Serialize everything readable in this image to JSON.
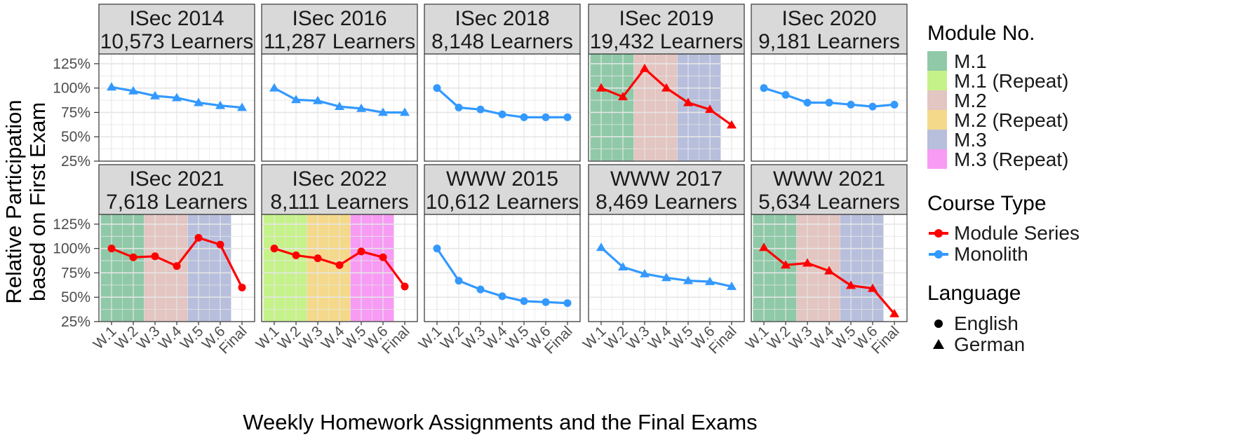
{
  "chart_data": {
    "type": "line",
    "xlabel": "Weekly Homework Assignments and the Final Exams",
    "ylabel": [
      "Relative Participation",
      "based on First Exam"
    ],
    "categories": [
      "W.1",
      "W.2",
      "W.3",
      "W.4",
      "W.5",
      "W.6",
      "Final"
    ],
    "y_ticks": [
      "125%",
      "100%",
      "75%",
      "50%",
      "25%"
    ],
    "y_tick_values": [
      125,
      100,
      75,
      50,
      25
    ],
    "ylim": [
      25,
      135
    ],
    "grid": true,
    "legend_position": "right",
    "colors": {
      "module_series": "#ff0000",
      "monolith": "#3399ff",
      "m1": "#8fc9a8",
      "m1_repeat": "#c6f28a",
      "m2": "#e3c5c1",
      "m2_repeat": "#f5d98a",
      "m3": "#b7bfdc",
      "m3_repeat": "#f79bf4",
      "strip": "#d9d9d9"
    },
    "panels": [
      {
        "title": "ISec 2014",
        "subtitle": "10,573 Learners",
        "course_type": "Monolith",
        "language": "German",
        "values": [
          101,
          97,
          92,
          90,
          85,
          82,
          80
        ],
        "bands": []
      },
      {
        "title": "ISec 2016",
        "subtitle": "11,287 Learners",
        "course_type": "Monolith",
        "language": "German",
        "values": [
          100,
          88,
          87,
          81,
          79,
          75,
          75
        ],
        "bands": []
      },
      {
        "title": "ISec 2018",
        "subtitle": "8,148 Learners",
        "course_type": "Monolith",
        "language": "English",
        "values": [
          100,
          80,
          78,
          73,
          70,
          70,
          70
        ],
        "bands": []
      },
      {
        "title": "ISec 2019",
        "subtitle": "19,432 Learners",
        "course_type": "Module Series",
        "language": "German",
        "values": [
          100,
          91,
          120,
          100,
          85,
          78,
          62
        ],
        "bands": [
          {
            "module": "M.1",
            "key": "m1",
            "from": 1,
            "to": 2
          },
          {
            "module": "M.2",
            "key": "m2",
            "from": 3,
            "to": 4
          },
          {
            "module": "M.3",
            "key": "m3",
            "from": 5,
            "to": 6
          }
        ]
      },
      {
        "title": "ISec 2020",
        "subtitle": "9,181 Learners",
        "course_type": "Monolith",
        "language": "English",
        "values": [
          100,
          93,
          85,
          85,
          83,
          81,
          83
        ],
        "bands": []
      },
      {
        "title": "ISec 2021",
        "subtitle": "7,618 Learners",
        "course_type": "Module Series",
        "language": "English",
        "values": [
          100,
          91,
          92,
          82,
          111,
          104,
          60
        ],
        "bands": [
          {
            "module": "M.1",
            "key": "m1",
            "from": 1,
            "to": 2
          },
          {
            "module": "M.2",
            "key": "m2",
            "from": 3,
            "to": 4
          },
          {
            "module": "M.3",
            "key": "m3",
            "from": 5,
            "to": 6
          }
        ]
      },
      {
        "title": "ISec 2022",
        "subtitle": "8,111 Learners",
        "course_type": "Module Series",
        "language": "English",
        "values": [
          100,
          93,
          90,
          83,
          97,
          91,
          61
        ],
        "bands": [
          {
            "module": "M.1 (Repeat)",
            "key": "m1_repeat",
            "from": 1,
            "to": 2
          },
          {
            "module": "M.2 (Repeat)",
            "key": "m2_repeat",
            "from": 3,
            "to": 4
          },
          {
            "module": "M.3 (Repeat)",
            "key": "m3_repeat",
            "from": 5,
            "to": 6
          }
        ]
      },
      {
        "title": "WWW 2015",
        "subtitle": "10,612 Learners",
        "course_type": "Monolith",
        "language": "English",
        "values": [
          100,
          67,
          58,
          51,
          46,
          45,
          44
        ],
        "bands": []
      },
      {
        "title": "WWW 2017",
        "subtitle": "8,469 Learners",
        "course_type": "Monolith",
        "language": "German",
        "values": [
          101,
          81,
          74,
          70,
          67,
          66,
          61
        ],
        "bands": []
      },
      {
        "title": "WWW 2021",
        "subtitle": "5,634 Learners",
        "course_type": "Module Series",
        "language": "German",
        "values": [
          101,
          83,
          85,
          77,
          62,
          59,
          33
        ],
        "bands": [
          {
            "module": "M.1",
            "key": "m1",
            "from": 1,
            "to": 2
          },
          {
            "module": "M.2",
            "key": "m2",
            "from": 3,
            "to": 4
          },
          {
            "module": "M.3",
            "key": "m3",
            "from": 5,
            "to": 6
          }
        ]
      }
    ],
    "legend": {
      "module_title": "Module No.",
      "modules": [
        {
          "label": "M.1",
          "key": "m1"
        },
        {
          "label": "M.1 (Repeat)",
          "key": "m1_repeat"
        },
        {
          "label": "M.2",
          "key": "m2"
        },
        {
          "label": "M.2 (Repeat)",
          "key": "m2_repeat"
        },
        {
          "label": "M.3",
          "key": "m3"
        },
        {
          "label": "M.3 (Repeat)",
          "key": "m3_repeat"
        }
      ],
      "course_title": "Course Type",
      "course_types": [
        {
          "label": "Module Series",
          "key": "module_series"
        },
        {
          "label": "Monolith",
          "key": "monolith"
        }
      ],
      "language_title": "Language",
      "languages": [
        {
          "label": "English",
          "shape": "circle"
        },
        {
          "label": "German",
          "shape": "triangle"
        }
      ]
    }
  }
}
